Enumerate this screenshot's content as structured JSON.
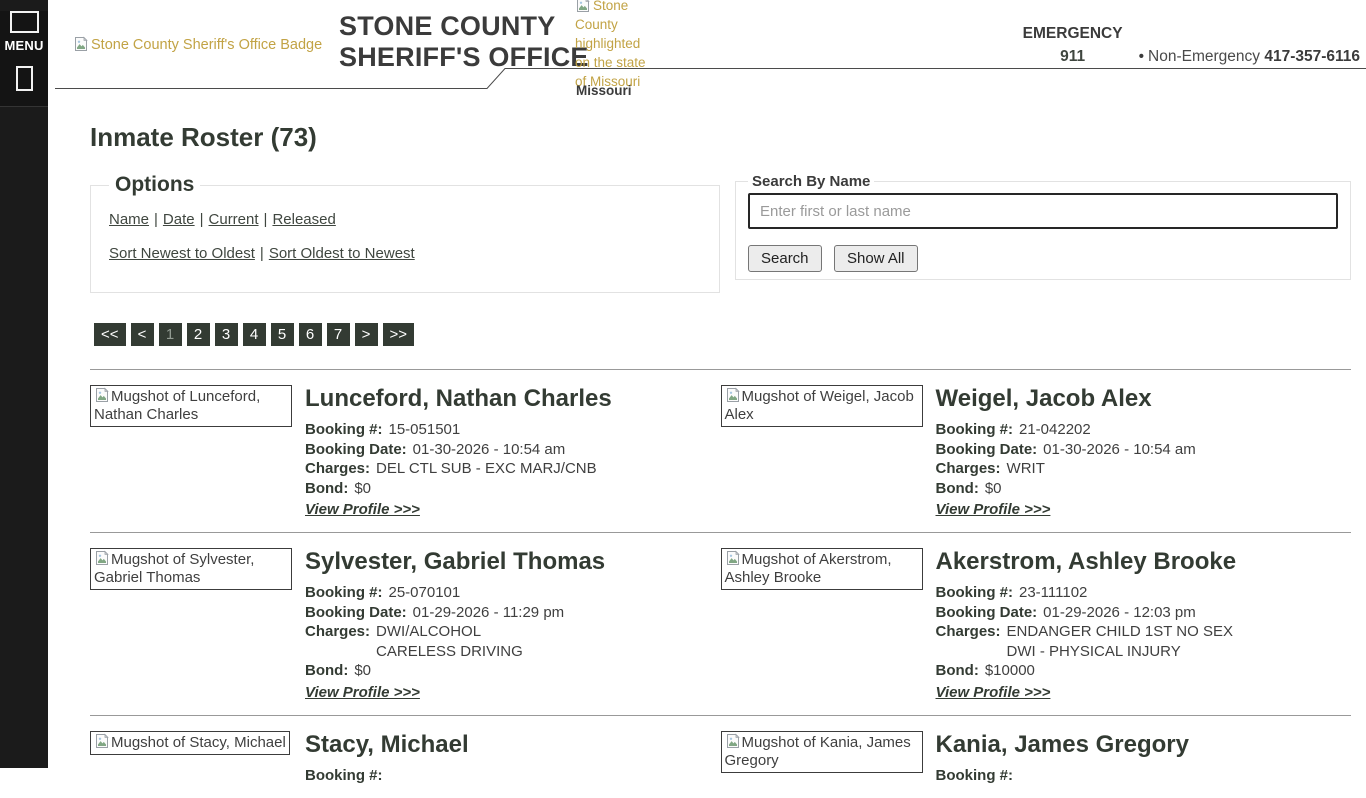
{
  "sidebar": {
    "menu_label": "MENU"
  },
  "header": {
    "badge_alt": "Stone County Sheriff's Office Badge",
    "title_lines": [
      "STONE COUNTY",
      "SHERIFF'S OFFICE"
    ],
    "state_image_alt": "Stone County highlighted on the state of Missouri",
    "state_caption": "Missouri",
    "emergency_label": "EMERGENCY",
    "emergency_number": "911",
    "bullet": "•",
    "non_emergency_label": "Non-Emergency",
    "non_emergency_number": "417-357-6116"
  },
  "page": {
    "title": "Inmate Roster (73)"
  },
  "options": {
    "legend": "Options",
    "separator": "|",
    "filter_links": [
      "Name",
      "Date",
      "Current",
      "Released"
    ],
    "sort_links": [
      "Sort Newest to Oldest",
      "Sort Oldest to Newest"
    ]
  },
  "search": {
    "legend": "Search By Name",
    "placeholder": "Enter first or last name",
    "search_button": "Search",
    "show_all_button": "Show All"
  },
  "pagination": {
    "buttons": [
      "<<",
      "<",
      "1",
      "2",
      "3",
      "4",
      "5",
      "6",
      "7",
      ">",
      ">>"
    ],
    "current": "1"
  },
  "labels": {
    "booking_no": "Booking #:",
    "booking_date": "Booking Date:",
    "charges": "Charges:",
    "bond": "Bond:",
    "view_profile": "View Profile >>>"
  },
  "inmates": [
    {
      "alt": "Mugshot of Lunceford, Nathan Charles",
      "name": "Lunceford, Nathan Charles",
      "booking_no": "15-051501",
      "booking_date": "01-30-2026 - 10:54 am",
      "charges": [
        "DEL CTL SUB - EXC MARJ/CNB"
      ],
      "bond": "$0",
      "partial": false
    },
    {
      "alt": "Mugshot of Weigel, Jacob Alex",
      "name": "Weigel, Jacob Alex",
      "booking_no": "21-042202",
      "booking_date": "01-30-2026 - 10:54 am",
      "charges": [
        "WRIT"
      ],
      "bond": "$0",
      "partial": false
    },
    {
      "alt": "Mugshot of Sylvester, Gabriel Thomas",
      "name": "Sylvester, Gabriel Thomas",
      "booking_no": "25-070101",
      "booking_date": "01-29-2026 - 11:29 pm",
      "charges": [
        "DWI/ALCOHOL",
        "CARELESS DRIVING"
      ],
      "bond": "$0",
      "partial": false
    },
    {
      "alt": "Mugshot of Akerstrom, Ashley Brooke",
      "name": "Akerstrom, Ashley Brooke",
      "booking_no": "23-111102",
      "booking_date": "01-29-2026 - 12:03 pm",
      "charges": [
        "ENDANGER CHILD 1ST NO SEX",
        "DWI - PHYSICAL INJURY"
      ],
      "bond": "$10000",
      "partial": false
    },
    {
      "alt": "Mugshot of Stacy, Michael",
      "name": "Stacy, Michael",
      "partial": true
    },
    {
      "alt": "Mugshot of Kania, James Gregory",
      "name": "Kania, James Gregory",
      "partial": true
    }
  ],
  "colors": {
    "accent_dark_green": "#333b33",
    "alt_text_gold": "#c2a345",
    "sidebar_black": "#1b1b1b",
    "fieldset_border": "#e2e2e2",
    "row_divider": "#999999"
  }
}
